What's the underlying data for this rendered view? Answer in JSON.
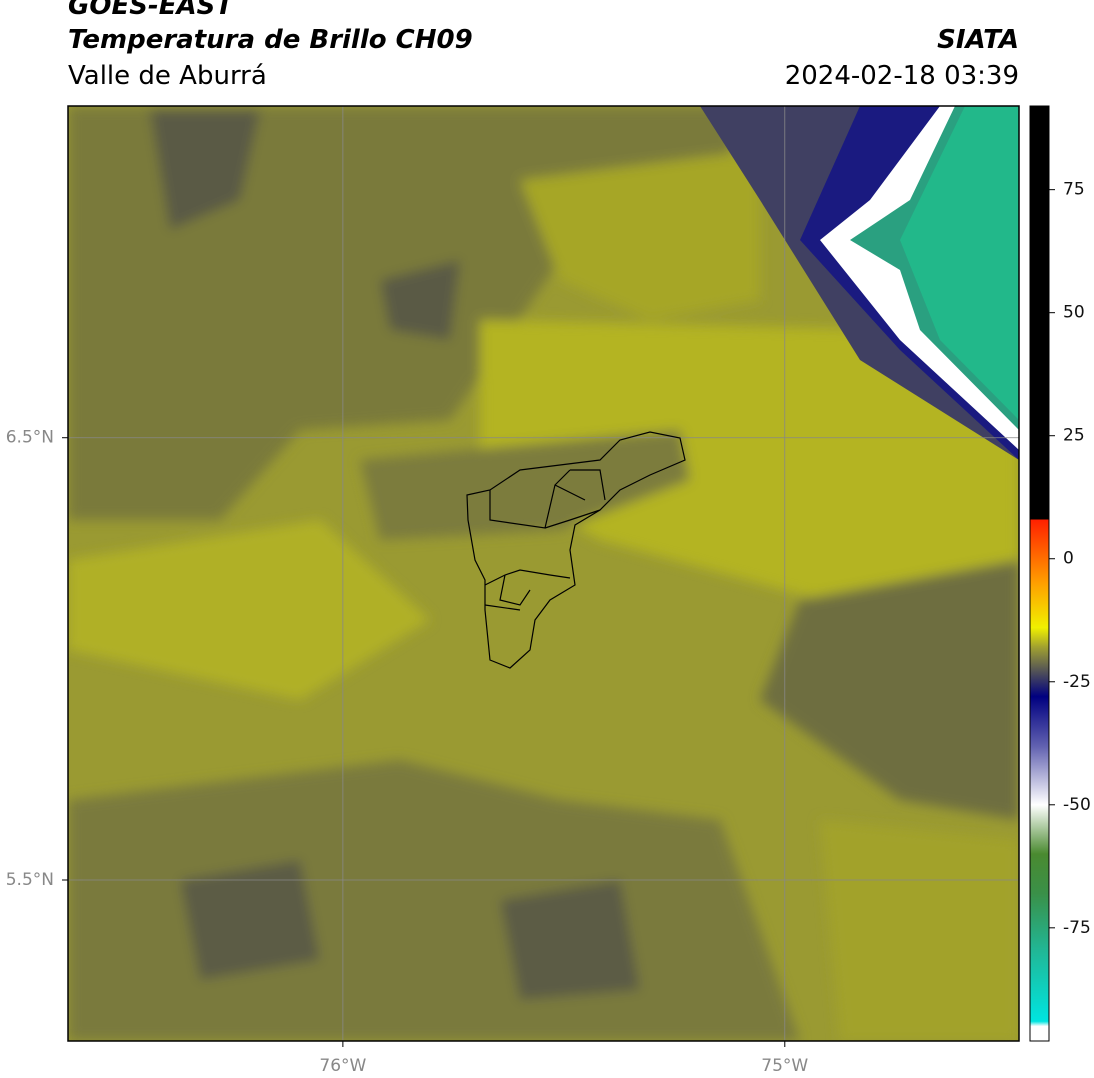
{
  "header": {
    "title": "GOES-EAST",
    "subtitle": "Temperatura de Brillo CH09",
    "region": "Valle de Aburrá",
    "source": "SIATA",
    "datetime": "2024-02-18 03:39"
  },
  "map": {
    "lon_lim": [
      -76.622,
      -74.47
    ],
    "lat_lim": [
      5.136,
      7.25
    ],
    "parallels": [
      {
        "value": 6.5,
        "label": "6.5°N"
      },
      {
        "value": 5.5,
        "label": "5.5°N"
      }
    ],
    "meridians": [
      {
        "value": -76,
        "label": "76°W"
      },
      {
        "value": -75,
        "label": "75°W"
      }
    ]
  },
  "colorbar": {
    "lim": [
      -98,
      92
    ],
    "ticks": [
      75,
      50,
      25,
      0,
      -25,
      -50,
      -75
    ],
    "stops": [
      {
        "value": -98,
        "color": "#ffffff"
      },
      {
        "value": -95,
        "color": "#ffffff"
      },
      {
        "value": -94,
        "color": "#00e5e0"
      },
      {
        "value": -80,
        "color": "#20b898"
      },
      {
        "value": -68,
        "color": "#3a9048"
      },
      {
        "value": -60,
        "color": "#4a8a30"
      },
      {
        "value": -50,
        "color": "#ffffff"
      },
      {
        "value": -38,
        "color": "#6060b0"
      },
      {
        "value": -28,
        "color": "#000080"
      },
      {
        "value": -24,
        "color": "#404060"
      },
      {
        "value": -18,
        "color": "#a0a030"
      },
      {
        "value": -14,
        "color": "#f0f000"
      },
      {
        "value": -5,
        "color": "#ffa000"
      },
      {
        "value": 8,
        "color": "#ff2000"
      },
      {
        "value": 8.01,
        "color": "#000000"
      },
      {
        "value": 92,
        "color": "#000000"
      }
    ]
  }
}
